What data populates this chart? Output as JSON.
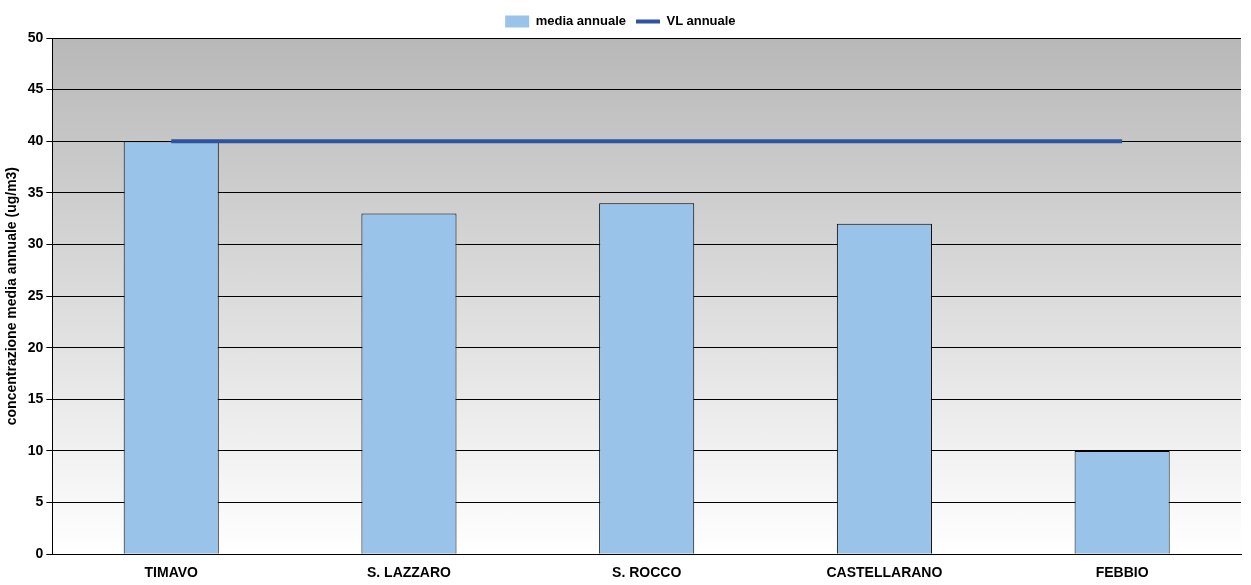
{
  "chart_data": {
    "type": "bar",
    "ylabel": "concentrazione media annuale (ug/m3)",
    "categories": [
      "TIMAVO",
      "S. LAZZARO",
      "S. ROCCO",
      "CASTELLARANO",
      "FEBBIO"
    ],
    "series": [
      {
        "name": "media annuale",
        "color": "#99c3e8",
        "values": [
          40,
          33,
          34,
          32,
          10
        ]
      },
      {
        "name": "VL annuale",
        "type": "line",
        "color": "#2e53a0",
        "values": [
          40,
          40,
          40,
          40,
          40
        ]
      }
    ],
    "ylim": [
      0,
      50
    ],
    "yticks": [
      0,
      5,
      10,
      15,
      20,
      25,
      30,
      35,
      40,
      45,
      50
    ],
    "grid": "y",
    "legend": "top",
    "marker": "none"
  }
}
